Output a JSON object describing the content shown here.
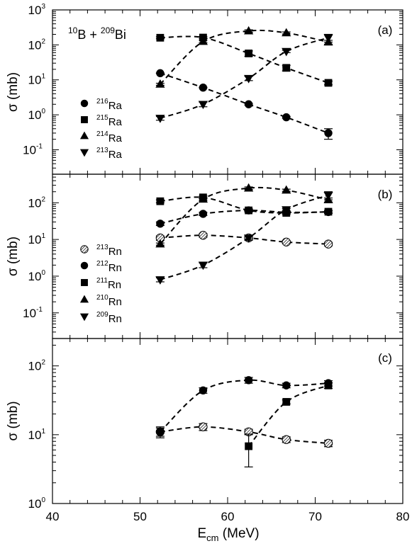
{
  "chart_data": {
    "type": "scatter",
    "xlabel": "E",
    "xlabel_sub": "cm",
    "xlabel_unit": "(MeV)",
    "xlim": [
      40,
      80
    ],
    "x_ticks": [
      "40",
      "50",
      "60",
      "70",
      "80"
    ],
    "y_scale": "log",
    "grid": false,
    "panels": [
      {
        "label": "(a)",
        "ylabel": "σ (mb)",
        "ylim": [
          0.02,
          1000
        ],
        "y_ticks": [
          {
            "value": 0.1,
            "base": "10",
            "exp": "-1"
          },
          {
            "value": 1,
            "base": "10",
            "exp": "0"
          },
          {
            "value": 10,
            "base": "10",
            "exp": "1"
          },
          {
            "value": 100,
            "base": "10",
            "exp": "2"
          },
          {
            "value": 1000,
            "base": "10",
            "exp": "3"
          }
        ],
        "reaction": {
          "z1": "10",
          "s1": "B + ",
          "z2": "209",
          "s2": "Bi"
        },
        "legend_position": "left",
        "series": [
          {
            "mass": "216",
            "element": "Ra",
            "marker": "circle",
            "x": [
              52.3,
              57.2,
              62.4,
              66.7,
              71.5
            ],
            "y": [
              15.5,
              6.0,
              2.0,
              0.85,
              0.3
            ],
            "err": [
              0.2,
              0.15,
              0.1,
              0.05,
              0.1
            ]
          },
          {
            "mass": "215",
            "element": "Ra",
            "marker": "square",
            "x": [
              52.3,
              57.2,
              62.4,
              66.7,
              71.5
            ],
            "y": [
              160,
              162,
              57,
              22,
              8.2
            ],
            "err": [
              10,
              12,
              10,
              4,
              1.0
            ]
          },
          {
            "mass": "214",
            "element": "Ra",
            "marker": "triangle-up",
            "x": [
              52.3,
              57.2,
              62.4,
              66.7,
              71.5
            ],
            "y": [
              7.5,
              125,
              250,
              220,
              120
            ],
            "err": [
              0.5,
              10,
              20,
              15,
              15
            ]
          },
          {
            "mass": "213",
            "element": "Ra",
            "marker": "triangle-down",
            "x": [
              52.3,
              57.2,
              62.4,
              66.7,
              71.5
            ],
            "y": [
              0.8,
              2.0,
              11,
              65,
              160
            ],
            "err": [
              0.1,
              0.3,
              1.5,
              5,
              40
            ]
          }
        ]
      },
      {
        "label": "(b)",
        "ylabel": "σ (mb)",
        "ylim": [
          0.02,
          600
        ],
        "y_ticks": [
          {
            "value": 0.1,
            "base": "10",
            "exp": "-1"
          },
          {
            "value": 1,
            "base": "10",
            "exp": "0"
          },
          {
            "value": 10,
            "base": "10",
            "exp": "1"
          },
          {
            "value": 100,
            "base": "10",
            "exp": "2"
          }
        ],
        "legend_position": "left",
        "series": [
          {
            "mass": "213",
            "element": "Rn",
            "marker": "hatched-circle",
            "x": [
              52.3,
              57.2,
              62.4,
              66.7,
              71.5
            ],
            "y": [
              11,
              13,
              11,
              8.5,
              7.5
            ],
            "err": [
              1.5,
              1.5,
              1.0,
              0.8,
              0.8
            ]
          },
          {
            "mass": "212",
            "element": "Rn",
            "marker": "circle",
            "x": [
              52.3,
              57.2,
              62.4,
              66.7,
              71.5
            ],
            "y": [
              27,
              50,
              62,
              55,
              56
            ],
            "err": [
              3,
              5,
              5,
              4,
              5
            ]
          },
          {
            "mass": "211",
            "element": "Rn",
            "marker": "square",
            "x": [
              52.3,
              57.2,
              62.4,
              66.7,
              71.5
            ],
            "y": [
              110,
              140,
              62,
              53,
              57
            ],
            "err": [
              10,
              12,
              6,
              5,
              5
            ]
          },
          {
            "mass": "210",
            "element": "Rn",
            "marker": "triangle-up",
            "x": [
              52.3,
              57.2,
              62.4,
              66.7,
              71.5
            ],
            "y": [
              7.5,
              125,
              250,
              220,
              120
            ],
            "err": [
              0.5,
              10,
              20,
              15,
              15
            ]
          },
          {
            "mass": "209",
            "element": "Rn",
            "marker": "triangle-down",
            "x": [
              52.3,
              57.2,
              62.4,
              66.7,
              71.5
            ],
            "y": [
              0.8,
              2.0,
              11,
              65,
              160
            ],
            "err": [
              0.1,
              0.3,
              1.5,
              5,
              40
            ]
          }
        ]
      },
      {
        "label": "(c)",
        "ylabel": "σ (mb)",
        "ylim": [
          1,
          250
        ],
        "y_ticks": [
          {
            "value": 1,
            "base": "10",
            "exp": "0"
          },
          {
            "value": 10,
            "base": "10",
            "exp": "1"
          },
          {
            "value": 100,
            "base": "10",
            "exp": "2"
          }
        ],
        "series": [
          {
            "mass": "213",
            "element": "Rn",
            "marker": "hatched-circle",
            "x": [
              52.3,
              57.2,
              62.4,
              66.7,
              71.5
            ],
            "y": [
              11,
              13,
              11,
              8.5,
              7.5
            ],
            "err": [
              2,
              1.5,
              1.0,
              0.8,
              0.8
            ]
          },
          {
            "mass": "212",
            "element": "Rn",
            "marker": "circle",
            "x": [
              52.3,
              57.2,
              62.4,
              66.7,
              71.5
            ],
            "y": [
              11,
              44,
              62,
              52,
              56
            ],
            "err": [
              1.5,
              4,
              6,
              4,
              5
            ]
          },
          {
            "mass": "211",
            "element": "Rn",
            "marker": "square",
            "x": [
              62.4,
              66.7,
              71.5
            ],
            "y": [
              6.8,
              30,
              52
            ],
            "err": [
              3.4,
              2,
              5
            ]
          }
        ]
      }
    ]
  }
}
